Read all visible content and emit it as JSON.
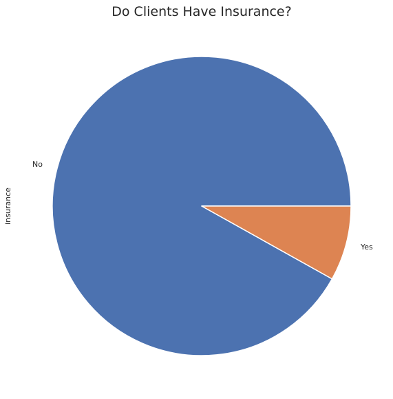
{
  "chart_data": {
    "type": "pie",
    "title": "Do Clients Have Insurance?",
    "ylabel": "insurance",
    "labels": [
      "No",
      "Yes"
    ],
    "values": [
      91.9,
      8.1
    ],
    "colors": [
      "#4c72b0",
      "#dd8452"
    ],
    "start_angle": 0,
    "direction": "counterclockwise"
  }
}
